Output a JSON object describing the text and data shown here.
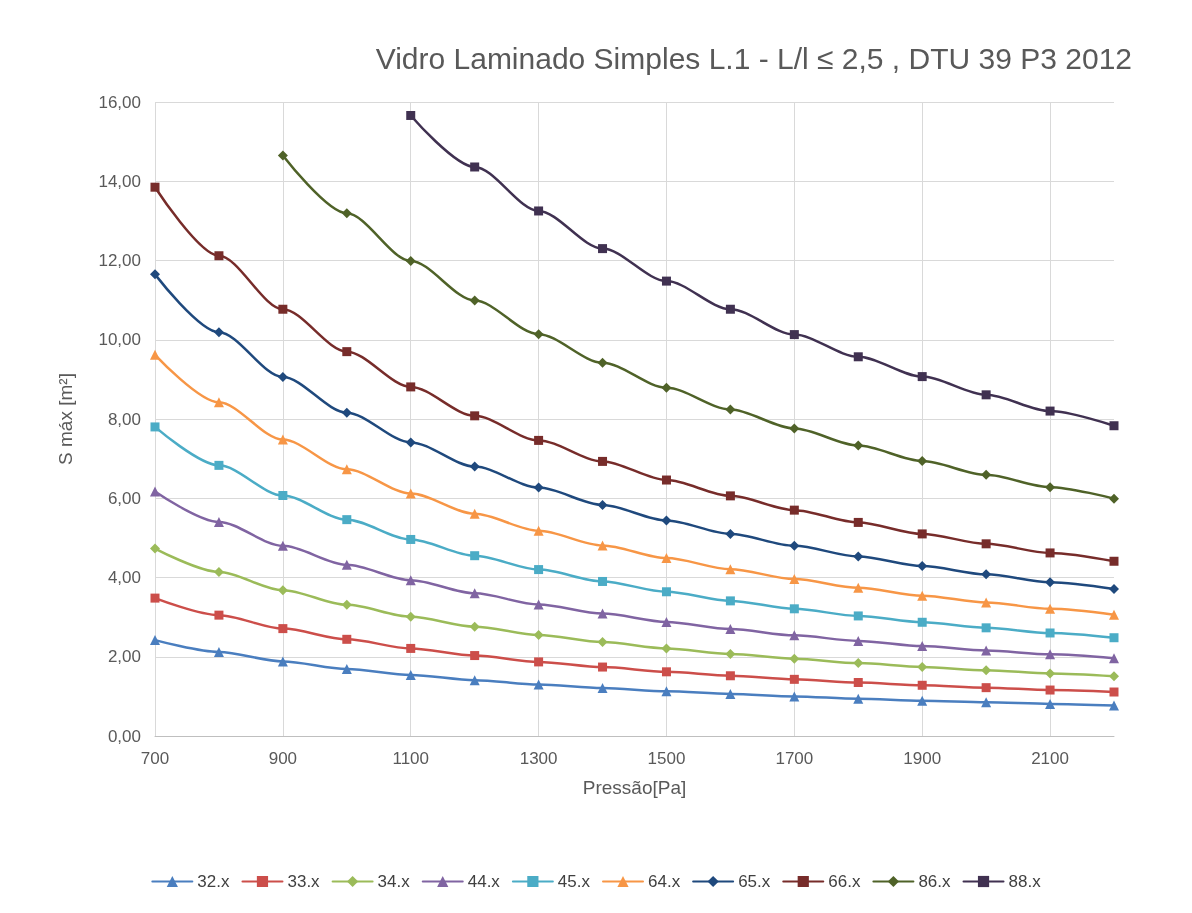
{
  "chart_data": {
    "type": "line",
    "title": "Vidro Laminado Simples L.1 - L/l ≤ 2,5 , DTU 39 P3 2012",
    "xlabel": "Pressão[Pa]",
    "ylabel": "S máx [m²]",
    "x": [
      700,
      800,
      900,
      1000,
      1100,
      1200,
      1300,
      1400,
      1500,
      1600,
      1700,
      1800,
      1900,
      2000,
      2100,
      2200
    ],
    "xlim": [
      700,
      2200
    ],
    "xticks": [
      700,
      900,
      1100,
      1300,
      1500,
      1700,
      1900,
      2100
    ],
    "ylim": [
      0,
      16
    ],
    "yticks": [
      {
        "value": 0,
        "label": "0,00"
      },
      {
        "value": 2,
        "label": "2,00"
      },
      {
        "value": 4,
        "label": "4,00"
      },
      {
        "value": 6,
        "label": "6,00"
      },
      {
        "value": 8,
        "label": "8,00"
      },
      {
        "value": 10,
        "label": "10,00"
      },
      {
        "value": 12,
        "label": "12,00"
      },
      {
        "value": 14,
        "label": "14,00"
      },
      {
        "value": 16,
        "label": "16,00"
      }
    ],
    "grid": true,
    "legend": "bottom",
    "series": [
      {
        "name": "32.x",
        "color": "#4a7ebf",
        "marker": "triangle",
        "values": [
          2.42,
          2.12,
          1.88,
          1.69,
          1.54,
          1.41,
          1.3,
          1.21,
          1.13,
          1.06,
          1.0,
          0.94,
          0.89,
          0.85,
          0.81,
          0.77
        ]
      },
      {
        "name": "33.x",
        "color": "#cc4e4a",
        "marker": "square",
        "values": [
          3.48,
          3.05,
          2.71,
          2.44,
          2.21,
          2.03,
          1.87,
          1.74,
          1.62,
          1.52,
          1.43,
          1.35,
          1.28,
          1.22,
          1.16,
          1.11
        ]
      },
      {
        "name": "34.x",
        "color": "#9bbb59",
        "marker": "diamond",
        "values": [
          4.73,
          4.14,
          3.68,
          3.31,
          3.01,
          2.76,
          2.55,
          2.37,
          2.21,
          2.07,
          1.95,
          1.84,
          1.74,
          1.66,
          1.58,
          1.51
        ]
      },
      {
        "name": "44.x",
        "color": "#8064a2",
        "marker": "triangle",
        "values": [
          6.17,
          5.4,
          4.8,
          4.32,
          3.93,
          3.6,
          3.32,
          3.09,
          2.88,
          2.7,
          2.54,
          2.4,
          2.27,
          2.16,
          2.06,
          1.96
        ]
      },
      {
        "name": "45.x",
        "color": "#4bacc6",
        "marker": "square",
        "values": [
          7.8,
          6.83,
          6.07,
          5.46,
          4.96,
          4.55,
          4.2,
          3.9,
          3.64,
          3.41,
          3.21,
          3.03,
          2.87,
          2.73,
          2.6,
          2.48
        ]
      },
      {
        "name": "64.x",
        "color": "#f79646",
        "marker": "triangle",
        "values": [
          9.62,
          8.42,
          7.48,
          6.73,
          6.12,
          5.61,
          5.18,
          4.81,
          4.49,
          4.21,
          3.96,
          3.74,
          3.54,
          3.37,
          3.21,
          3.06
        ]
      },
      {
        "name": "65.x",
        "color": "#1f497d",
        "marker": "diamond",
        "values": [
          11.65,
          10.19,
          9.06,
          8.16,
          7.41,
          6.8,
          6.27,
          5.83,
          5.44,
          5.1,
          4.8,
          4.53,
          4.29,
          4.08,
          3.88,
          3.71
        ]
      },
      {
        "name": "66.x",
        "color": "#772c2a",
        "marker": "square",
        "values": [
          13.85,
          12.12,
          10.77,
          9.7,
          8.81,
          8.08,
          7.46,
          6.93,
          6.46,
          6.06,
          5.7,
          5.39,
          5.1,
          4.85,
          4.62,
          4.41
        ]
      },
      {
        "name": "86.x",
        "color": "#4f6228",
        "marker": "diamond",
        "values": [
          null,
          null,
          14.65,
          13.19,
          11.99,
          10.99,
          10.14,
          9.42,
          8.79,
          8.24,
          7.76,
          7.33,
          6.94,
          6.59,
          6.28,
          5.99
        ]
      },
      {
        "name": "88.x",
        "color": "#403151",
        "marker": "square",
        "values": [
          null,
          null,
          null,
          null,
          15.66,
          14.36,
          13.25,
          12.3,
          11.48,
          10.77,
          10.13,
          9.57,
          9.07,
          8.61,
          8.2,
          7.83
        ]
      }
    ]
  }
}
